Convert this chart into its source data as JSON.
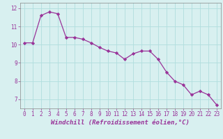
{
  "x": [
    0,
    1,
    2,
    3,
    4,
    5,
    6,
    7,
    8,
    9,
    10,
    11,
    12,
    13,
    14,
    15,
    16,
    17,
    18,
    19,
    20,
    21,
    22,
    23
  ],
  "y": [
    10.1,
    10.1,
    11.6,
    11.8,
    11.7,
    10.4,
    10.4,
    10.3,
    10.1,
    9.85,
    9.65,
    9.55,
    9.2,
    9.5,
    9.65,
    9.65,
    9.2,
    8.5,
    8.0,
    7.8,
    7.25,
    7.45,
    7.25,
    6.7
  ],
  "line_color": "#993399",
  "marker": "D",
  "marker_size": 2.2,
  "line_width": 0.9,
  "xlabel": "Windchill (Refroidissement éolien,°C)",
  "xlabel_fontsize": 6.5,
  "ylim": [
    6.5,
    12.3
  ],
  "xlim": [
    -0.5,
    23.5
  ],
  "yticks": [
    7,
    8,
    9,
    10,
    11,
    12
  ],
  "xticks": [
    0,
    1,
    2,
    3,
    4,
    5,
    6,
    7,
    8,
    9,
    10,
    11,
    12,
    13,
    14,
    15,
    16,
    17,
    18,
    19,
    20,
    21,
    22,
    23
  ],
  "background_color": "#d8f0f0",
  "grid_color": "#b0dede",
  "tick_fontsize": 5.5,
  "axis_color": "#993399",
  "spine_color": "#888888"
}
